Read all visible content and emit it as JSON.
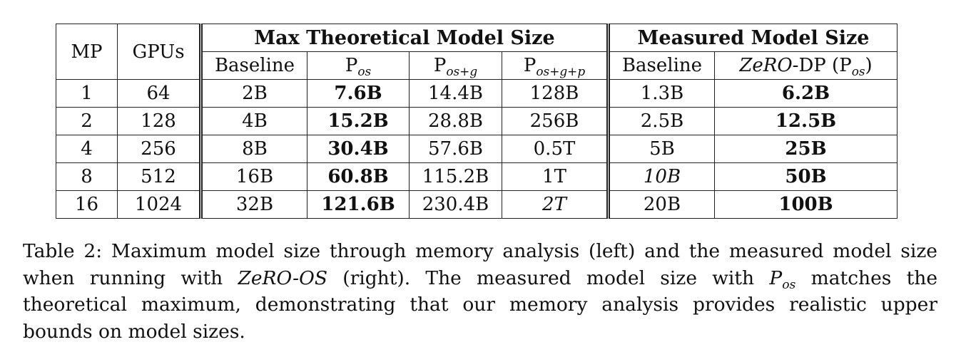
{
  "table": {
    "col_mp": "MP",
    "col_gpus": "GPUs",
    "group_theoretical": "Max Theoretical Model Size",
    "group_measured": "Measured Model Size",
    "sub_theoretical": {
      "baseline": "Baseline",
      "pos_base": "P",
      "pos_sub": "os",
      "posg_base": "P",
      "posg_sub": "os+g",
      "posgp_base": "P",
      "posgp_sub": "os+g+p"
    },
    "sub_measured": {
      "baseline": "Baseline",
      "zero_italic": "ZeRO",
      "zero_rest": "-DP (P",
      "zero_sub": "os",
      "zero_close": ")"
    },
    "rows": [
      {
        "mp": "1",
        "gpus": "64",
        "baseline": "2B",
        "pos": "7.6B",
        "posg": "14.4B",
        "posgp": "128B",
        "m_baseline": "1.3B",
        "m_zero": "6.2B"
      },
      {
        "mp": "2",
        "gpus": "128",
        "baseline": "4B",
        "pos": "15.2B",
        "posg": "28.8B",
        "posgp": "256B",
        "m_baseline": "2.5B",
        "m_zero": "12.5B"
      },
      {
        "mp": "4",
        "gpus": "256",
        "baseline": "8B",
        "pos": "30.4B",
        "posg": "57.6B",
        "posgp": "0.5T",
        "m_baseline": "5B",
        "m_zero": "25B"
      },
      {
        "mp": "8",
        "gpus": "512",
        "baseline": "16B",
        "pos": "60.8B",
        "posg": "115.2B",
        "posgp": "1T",
        "m_baseline": "10B",
        "m_zero": "50B"
      },
      {
        "mp": "16",
        "gpus": "1024",
        "baseline": "32B",
        "pos": "121.6B",
        "posg": "230.4B",
        "posgp": "2T",
        "m_baseline": "20B",
        "m_zero": "100B"
      }
    ]
  },
  "caption": {
    "part1": "Table 2: Maximum model size through memory analysis (left) and the measured model size when running with ",
    "zero_os": "ZeRO-OS",
    "part2": " (right). The measured model size with ",
    "p_base": "P",
    "p_sub": "os",
    "part3": " matches the theoretical maximum, demonstrating that our memory analysis provides realistic upper bounds on model sizes."
  }
}
